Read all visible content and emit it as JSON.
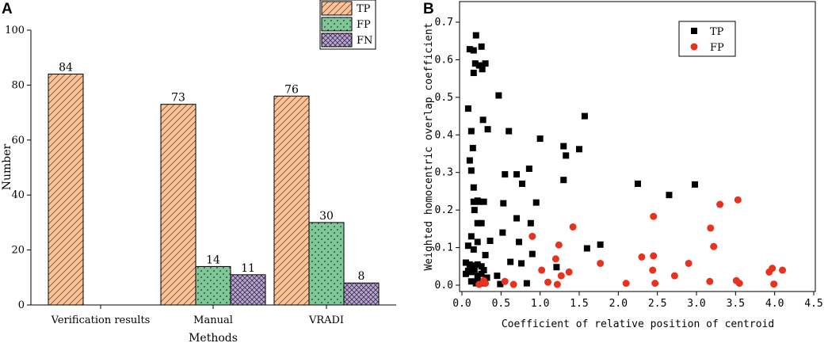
{
  "chart_data": [
    {
      "panel": "A",
      "type": "bar",
      "title": "",
      "xlabel": "Methods",
      "ylabel": "Number",
      "ylim": [
        0,
        100
      ],
      "yticks": [
        "0",
        "20",
        "40",
        "60",
        "80",
        "100"
      ],
      "categories": [
        "Verification results",
        "Manual",
        "VRADI"
      ],
      "series": [
        {
          "name": "TP",
          "values": [
            84,
            73,
            76
          ],
          "color": "#f8c49c",
          "pattern": "diagonal-hatch"
        },
        {
          "name": "FP",
          "values": [
            null,
            14,
            30
          ],
          "color": "#7fc797",
          "pattern": "dots"
        },
        {
          "name": "FN",
          "values": [
            null,
            11,
            8
          ],
          "color": "#b9a6cf",
          "pattern": "crosshatch"
        }
      ],
      "data_labels": [
        {
          "series": "TP",
          "category": "Verification results",
          "text": "84"
        },
        {
          "series": "TP",
          "category": "Manual",
          "text": "73"
        },
        {
          "series": "FP",
          "category": "Manual",
          "text": "14"
        },
        {
          "series": "FN",
          "category": "Manual",
          "text": "11"
        },
        {
          "series": "TP",
          "category": "VRADI",
          "text": "76"
        },
        {
          "series": "FP",
          "category": "VRADI",
          "text": "30"
        },
        {
          "series": "FN",
          "category": "VRADI",
          "text": "8"
        }
      ],
      "legend": {
        "position": "top-right",
        "entries": [
          "TP",
          "FP",
          "FN"
        ]
      }
    },
    {
      "panel": "B",
      "type": "scatter",
      "title": "",
      "xlabel": "Coefficient of relative position of centroid",
      "ylabel": "Weighted homocentric overlap coefficient",
      "xlim": [
        0,
        4.5
      ],
      "ylim": [
        0,
        0.75
      ],
      "xticks": [
        "0.0",
        "0.5",
        "1.0",
        "1.5",
        "2.0",
        "2.5",
        "3.0",
        "3.5",
        "4.0",
        "4.5"
      ],
      "yticks": [
        "0.0",
        "0.1",
        "0.2",
        "0.3",
        "0.4",
        "0.5",
        "0.6",
        "0.7"
      ],
      "legend": {
        "position": "top-right",
        "entries": [
          "TP",
          "FP"
        ]
      },
      "series": [
        {
          "name": "TP",
          "marker": "square",
          "color": "#000000",
          "points": [
            [
              0.18,
              0.665
            ],
            [
              0.25,
              0.635
            ],
            [
              0.1,
              0.628
            ],
            [
              0.15,
              0.625
            ],
            [
              0.17,
              0.59
            ],
            [
              0.22,
              0.585
            ],
            [
              0.3,
              0.59
            ],
            [
              0.26,
              0.575
            ],
            [
              0.15,
              0.565
            ],
            [
              0.47,
              0.505
            ],
            [
              0.08,
              0.47
            ],
            [
              1.57,
              0.45
            ],
            [
              0.27,
              0.44
            ],
            [
              0.33,
              0.415
            ],
            [
              0.6,
              0.41
            ],
            [
              0.12,
              0.41
            ],
            [
              0.14,
              0.365
            ],
            [
              1.0,
              0.39
            ],
            [
              1.3,
              0.37
            ],
            [
              1.5,
              0.362
            ],
            [
              1.33,
              0.345
            ],
            [
              0.1,
              0.332
            ],
            [
              0.12,
              0.305
            ],
            [
              0.86,
              0.31
            ],
            [
              0.55,
              0.295
            ],
            [
              0.7,
              0.295
            ],
            [
              1.3,
              0.28
            ],
            [
              0.77,
              0.27
            ],
            [
              2.25,
              0.27
            ],
            [
              2.98,
              0.268
            ],
            [
              2.65,
              0.24
            ],
            [
              0.15,
              0.26
            ],
            [
              0.15,
              0.222
            ],
            [
              0.2,
              0.225
            ],
            [
              0.22,
              0.222
            ],
            [
              0.28,
              0.222
            ],
            [
              0.53,
              0.218
            ],
            [
              0.95,
              0.22
            ],
            [
              0.16,
              0.2
            ],
            [
              0.7,
              0.178
            ],
            [
              0.2,
              0.165
            ],
            [
              0.25,
              0.165
            ],
            [
              0.88,
              0.165
            ],
            [
              0.52,
              0.14
            ],
            [
              0.12,
              0.13
            ],
            [
              0.36,
              0.118
            ],
            [
              0.73,
              0.115
            ],
            [
              0.2,
              0.115
            ],
            [
              1.6,
              0.098
            ],
            [
              0.08,
              0.105
            ],
            [
              1.77,
              0.108
            ],
            [
              0.15,
              0.095
            ],
            [
              0.3,
              0.08
            ],
            [
              0.9,
              0.083
            ],
            [
              0.05,
              0.06
            ],
            [
              0.1,
              0.055
            ],
            [
              0.15,
              0.052
            ],
            [
              0.2,
              0.055
            ],
            [
              0.25,
              0.05
            ],
            [
              0.62,
              0.062
            ],
            [
              0.76,
              0.058
            ],
            [
              1.21,
              0.048
            ],
            [
              0.05,
              0.03
            ],
            [
              0.08,
              0.038
            ],
            [
              0.12,
              0.035
            ],
            [
              0.16,
              0.042
            ],
            [
              0.2,
              0.025
            ],
            [
              0.25,
              0.03
            ],
            [
              0.28,
              0.04
            ],
            [
              0.32,
              0.02
            ],
            [
              0.45,
              0.025
            ],
            [
              0.12,
              0.01
            ],
            [
              0.2,
              0.01
            ],
            [
              0.28,
              0.005
            ],
            [
              0.49,
              0.003
            ],
            [
              0.83,
              0.005
            ],
            [
              0.18,
              0.005
            ]
          ]
        },
        {
          "name": "FP",
          "marker": "circle",
          "color": "#e8321e",
          "points": [
            [
              3.53,
              0.227
            ],
            [
              3.3,
              0.215
            ],
            [
              2.45,
              0.183
            ],
            [
              3.18,
              0.152
            ],
            [
              1.42,
              0.155
            ],
            [
              0.9,
              0.13
            ],
            [
              1.24,
              0.107
            ],
            [
              3.22,
              0.103
            ],
            [
              2.45,
              0.078
            ],
            [
              2.3,
              0.075
            ],
            [
              1.2,
              0.07
            ],
            [
              2.9,
              0.058
            ],
            [
              1.77,
              0.058
            ],
            [
              1.27,
              0.025
            ],
            [
              1.02,
              0.04
            ],
            [
              2.44,
              0.04
            ],
            [
              1.37,
              0.035
            ],
            [
              2.72,
              0.025
            ],
            [
              3.93,
              0.035
            ],
            [
              4.1,
              0.04
            ],
            [
              3.97,
              0.045
            ],
            [
              0.28,
              0.012
            ],
            [
              0.3,
              0.005
            ],
            [
              0.55,
              0.01
            ],
            [
              0.66,
              0.002
            ],
            [
              1.1,
              0.008
            ],
            [
              1.22,
              0.002
            ],
            [
              2.1,
              0.005
            ],
            [
              2.47,
              0.005
            ],
            [
              3.17,
              0.01
            ],
            [
              3.51,
              0.012
            ],
            [
              3.55,
              0.005
            ],
            [
              3.99,
              0.003
            ],
            [
              0.22,
              0.002
            ]
          ]
        }
      ]
    }
  ]
}
